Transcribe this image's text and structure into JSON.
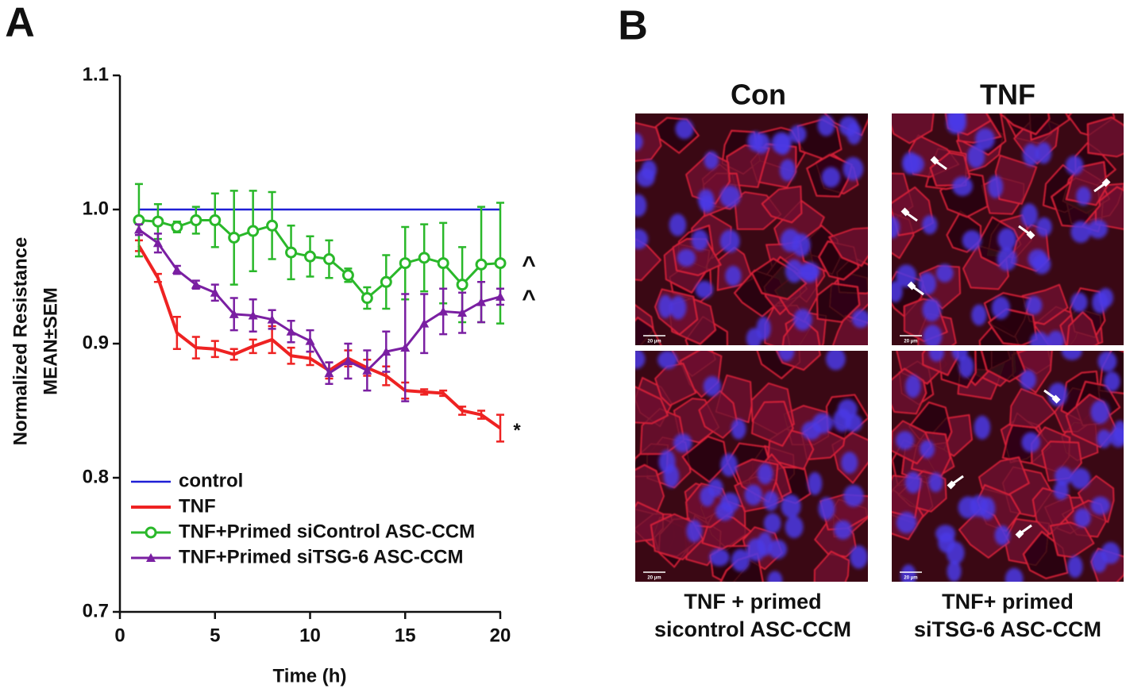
{
  "panel_labels": [
    "A",
    "B"
  ],
  "chart_data": {
    "type": "line",
    "x_label": "Time (h)",
    "y_label": [
      "Normalized   Resistance",
      "MEAN±SEM"
    ],
    "x": [
      1,
      2,
      3,
      4,
      5,
      6,
      7,
      8,
      9,
      10,
      11,
      12,
      13,
      14,
      15,
      16,
      17,
      18,
      19,
      20
    ],
    "xlim": [
      0,
      20
    ],
    "xticks": [
      0,
      5,
      10,
      15,
      20
    ],
    "ylim": [
      0.7,
      1.1
    ],
    "yticks": [
      0.7,
      0.8,
      0.9,
      {
        "value": 1,
        "label": "1.0"
      },
      1.1
    ],
    "legend": "lower left",
    "series": [
      {
        "name": "control",
        "color": "#1f1fd6",
        "marker": "none",
        "line_width": 2.5,
        "values": [
          1,
          1,
          1,
          1,
          1,
          1,
          1,
          1,
          1,
          1,
          1,
          1,
          1,
          1,
          1,
          1,
          1,
          1,
          1,
          1
        ]
      },
      {
        "name": "TNF",
        "color": "#ee2222",
        "marker": "none",
        "line_width": 4,
        "values": [
          0.973,
          0.949,
          0.908,
          0.897,
          0.896,
          0.892,
          0.898,
          0.903,
          0.891,
          0.889,
          0.88,
          0.889,
          0.882,
          0.876,
          0.865,
          0.864,
          0.863,
          0.85,
          0.847,
          0.837
        ],
        "errors": [
          0.004,
          0.003,
          0.012,
          0.008,
          0.006,
          0.004,
          0.005,
          0.01,
          0.006,
          0.005,
          0.006,
          0.006,
          0.006,
          0.007,
          0.006,
          0.002,
          0.002,
          0.003,
          0.003,
          0.01
        ]
      },
      {
        "name": "TNF+Primed siControl ASC-CCM",
        "color": "#2ab82a",
        "marker": "circle",
        "line_width": 3,
        "values": [
          0.992,
          0.991,
          0.987,
          0.992,
          0.992,
          0.979,
          0.984,
          0.988,
          0.968,
          0.965,
          0.963,
          0.951,
          0.934,
          0.946,
          0.96,
          0.964,
          0.96,
          0.944,
          0.959,
          0.96
        ],
        "errors": [
          0.027,
          0.013,
          0.004,
          0.01,
          0.02,
          0.035,
          0.03,
          0.025,
          0.02,
          0.015,
          0.014,
          0.005,
          0.008,
          0.02,
          0.027,
          0.025,
          0.03,
          0.028,
          0.043,
          0.045
        ]
      },
      {
        "name": "TNF+Primed siTSG-6 ASC-CCM",
        "color": "#7a1fa2",
        "marker": "triangle",
        "line_width": 3,
        "values": [
          0.985,
          0.975,
          0.955,
          0.944,
          0.938,
          0.922,
          0.921,
          0.918,
          0.909,
          0.902,
          0.878,
          0.887,
          0.88,
          0.894,
          0.897,
          0.915,
          0.924,
          0.923,
          0.931,
          0.935
        ],
        "errors": [
          0.004,
          0.007,
          0.003,
          0.003,
          0.006,
          0.012,
          0.012,
          0.007,
          0.008,
          0.008,
          0.008,
          0.013,
          0.015,
          0.015,
          0.04,
          0.022,
          0.017,
          0.015,
          0.015,
          0.006
        ]
      }
    ],
    "annotations": [
      "^",
      "^",
      "*"
    ]
  },
  "images": {
    "column_titles": [
      "Con",
      "TNF"
    ],
    "captions": [
      [
        "TNF + primed",
        "sicontrol ASC-CCM"
      ],
      [
        "TNF+ primed",
        "siTSG-6 ASC-CCM"
      ]
    ],
    "scale_bar": "20 µm"
  }
}
